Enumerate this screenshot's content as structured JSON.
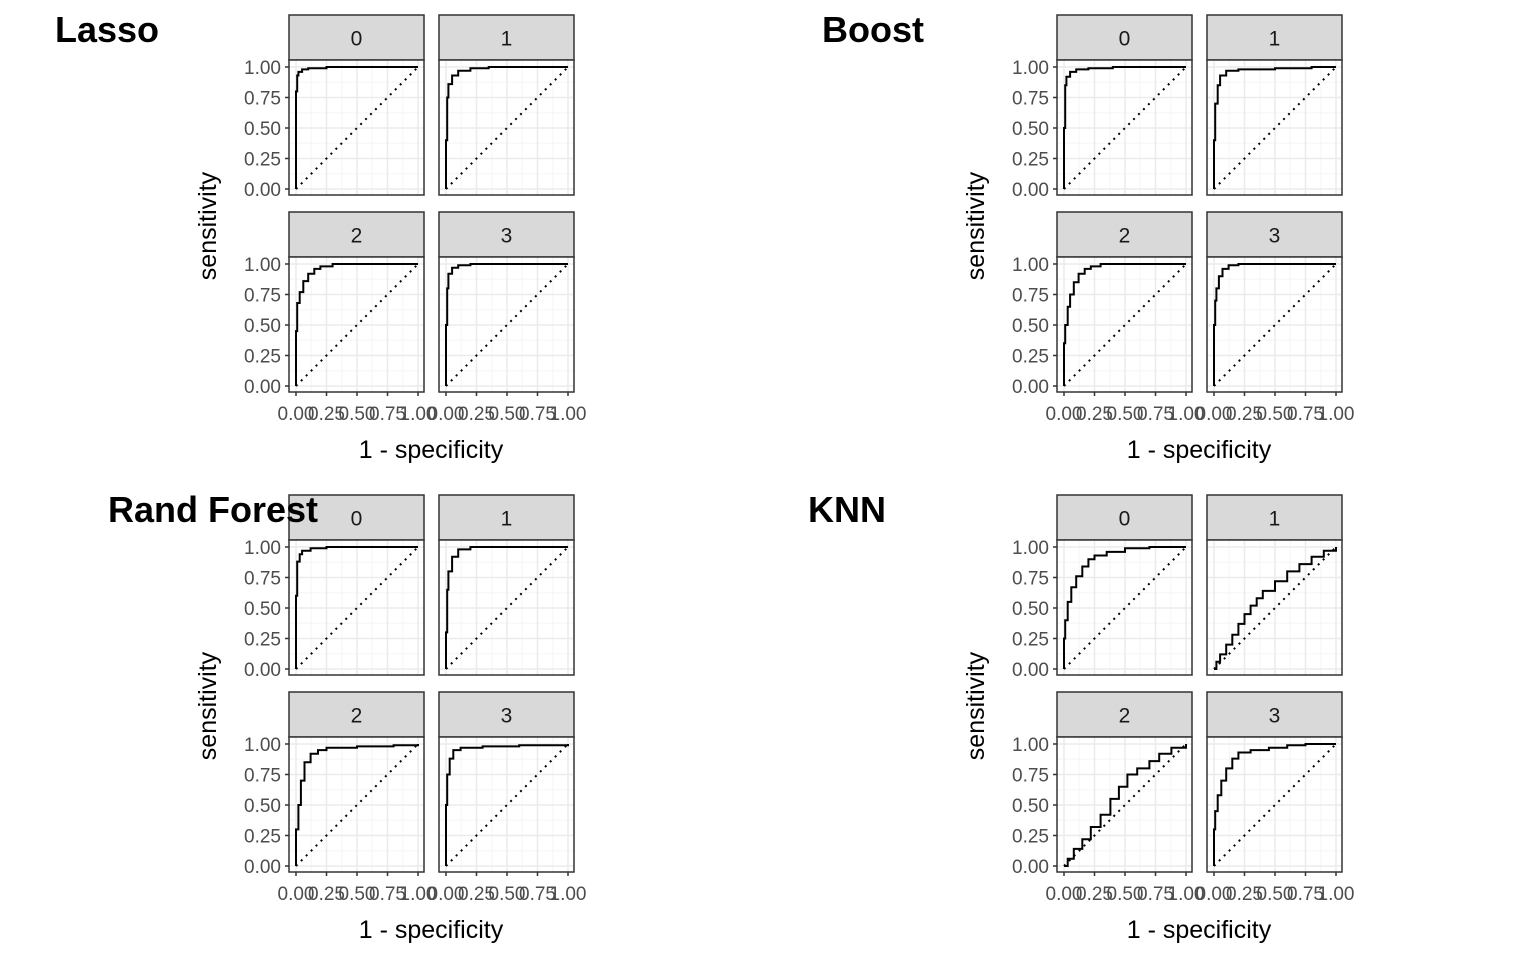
{
  "colors": {
    "strip_fill": "#d9d9d9",
    "border": "#333333",
    "grid_major": "#ebebeb",
    "grid_minor": "#f5f5f5",
    "tick_text": "#4d4d4d",
    "curve": "#000000"
  },
  "chart_data": [
    {
      "type": "line",
      "title": "Lasso",
      "xlabel": "1 - specificity",
      "ylabel": "sensitivity",
      "xlim": [
        0,
        1
      ],
      "ylim": [
        0,
        1
      ],
      "x_ticks": [
        "0.00",
        "0.25",
        "0.50",
        "0.75",
        "1.00"
      ],
      "y_ticks": [
        "0.00",
        "0.25",
        "0.50",
        "0.75",
        "1.00"
      ],
      "facets": [
        {
          "label": "0",
          "roc": [
            [
              0,
              0
            ],
            [
              0,
              0.5
            ],
            [
              0,
              0.8
            ],
            [
              0.01,
              0.93
            ],
            [
              0.02,
              0.96
            ],
            [
              0.05,
              0.98
            ],
            [
              0.1,
              0.99
            ],
            [
              0.25,
              1
            ],
            [
              1,
              1
            ]
          ]
        },
        {
          "label": "1",
          "roc": [
            [
              0,
              0
            ],
            [
              0,
              0.4
            ],
            [
              0.01,
              0.75
            ],
            [
              0.02,
              0.86
            ],
            [
              0.05,
              0.93
            ],
            [
              0.1,
              0.97
            ],
            [
              0.2,
              0.99
            ],
            [
              0.35,
              1
            ],
            [
              1,
              1
            ]
          ]
        },
        {
          "label": "2",
          "roc": [
            [
              0,
              0
            ],
            [
              0,
              0.45
            ],
            [
              0.01,
              0.68
            ],
            [
              0.03,
              0.77
            ],
            [
              0.06,
              0.86
            ],
            [
              0.1,
              0.92
            ],
            [
              0.15,
              0.96
            ],
            [
              0.2,
              0.98
            ],
            [
              0.3,
              1
            ],
            [
              1,
              1
            ]
          ]
        },
        {
          "label": "3",
          "roc": [
            [
              0,
              0
            ],
            [
              0,
              0.5
            ],
            [
              0.01,
              0.8
            ],
            [
              0.02,
              0.92
            ],
            [
              0.05,
              0.97
            ],
            [
              0.1,
              0.99
            ],
            [
              0.2,
              1
            ],
            [
              1,
              1
            ]
          ]
        }
      ]
    },
    {
      "type": "line",
      "title": "Boost",
      "xlabel": "1 - specificity",
      "ylabel": "sensitivity",
      "xlim": [
        0,
        1
      ],
      "ylim": [
        0,
        1
      ],
      "x_ticks": [
        "0.00",
        "0.25",
        "0.50",
        "0.75",
        "1.00"
      ],
      "y_ticks": [
        "0.00",
        "0.25",
        "0.50",
        "0.75",
        "1.00"
      ],
      "facets": [
        {
          "label": "0",
          "roc": [
            [
              0,
              0
            ],
            [
              0,
              0.5
            ],
            [
              0.01,
              0.85
            ],
            [
              0.02,
              0.92
            ],
            [
              0.05,
              0.96
            ],
            [
              0.1,
              0.98
            ],
            [
              0.2,
              0.99
            ],
            [
              0.4,
              1
            ],
            [
              1,
              1
            ]
          ]
        },
        {
          "label": "1",
          "roc": [
            [
              0,
              0
            ],
            [
              0,
              0.4
            ],
            [
              0.01,
              0.7
            ],
            [
              0.03,
              0.85
            ],
            [
              0.05,
              0.93
            ],
            [
              0.1,
              0.97
            ],
            [
              0.2,
              0.98
            ],
            [
              0.5,
              0.99
            ],
            [
              0.8,
              1
            ],
            [
              1,
              1
            ]
          ]
        },
        {
          "label": "2",
          "roc": [
            [
              0,
              0
            ],
            [
              0,
              0.35
            ],
            [
              0.01,
              0.5
            ],
            [
              0.03,
              0.65
            ],
            [
              0.05,
              0.75
            ],
            [
              0.08,
              0.85
            ],
            [
              0.12,
              0.92
            ],
            [
              0.17,
              0.96
            ],
            [
              0.22,
              0.98
            ],
            [
              0.3,
              1
            ],
            [
              1,
              1
            ]
          ]
        },
        {
          "label": "3",
          "roc": [
            [
              0,
              0
            ],
            [
              0,
              0.5
            ],
            [
              0.01,
              0.7
            ],
            [
              0.02,
              0.8
            ],
            [
              0.04,
              0.9
            ],
            [
              0.07,
              0.96
            ],
            [
              0.12,
              0.99
            ],
            [
              0.2,
              1
            ],
            [
              1,
              1
            ]
          ]
        }
      ]
    },
    {
      "type": "line",
      "title": "Rand Forest",
      "xlabel": "1 - specificity",
      "ylabel": "sensitivity",
      "xlim": [
        0,
        1
      ],
      "ylim": [
        0,
        1
      ],
      "x_ticks": [
        "0.00",
        "0.25",
        "0.50",
        "0.75",
        "1.00"
      ],
      "y_ticks": [
        "0.00",
        "0.25",
        "0.50",
        "0.75",
        "1.00"
      ],
      "facets": [
        {
          "label": "0",
          "roc": [
            [
              0,
              0
            ],
            [
              0,
              0.6
            ],
            [
              0.01,
              0.88
            ],
            [
              0.03,
              0.94
            ],
            [
              0.05,
              0.97
            ],
            [
              0.12,
              0.99
            ],
            [
              0.25,
              1
            ],
            [
              1,
              1
            ]
          ]
        },
        {
          "label": "1",
          "roc": [
            [
              0,
              0
            ],
            [
              0,
              0.3
            ],
            [
              0.01,
              0.65
            ],
            [
              0.02,
              0.8
            ],
            [
              0.05,
              0.92
            ],
            [
              0.1,
              0.98
            ],
            [
              0.2,
              1
            ],
            [
              1,
              1
            ]
          ]
        },
        {
          "label": "2",
          "roc": [
            [
              0,
              0
            ],
            [
              0,
              0.3
            ],
            [
              0.02,
              0.5
            ],
            [
              0.04,
              0.7
            ],
            [
              0.07,
              0.85
            ],
            [
              0.12,
              0.92
            ],
            [
              0.18,
              0.95
            ],
            [
              0.25,
              0.97
            ],
            [
              0.5,
              0.98
            ],
            [
              0.8,
              0.99
            ],
            [
              1,
              1
            ]
          ]
        },
        {
          "label": "3",
          "roc": [
            [
              0,
              0
            ],
            [
              0,
              0.5
            ],
            [
              0.01,
              0.75
            ],
            [
              0.03,
              0.88
            ],
            [
              0.06,
              0.95
            ],
            [
              0.12,
              0.97
            ],
            [
              0.3,
              0.98
            ],
            [
              0.6,
              0.99
            ],
            [
              1,
              1
            ]
          ]
        }
      ]
    },
    {
      "type": "line",
      "title": "KNN",
      "xlabel": "1 - specificity",
      "ylabel": "sensitivity",
      "xlim": [
        0,
        1
      ],
      "ylim": [
        0,
        1
      ],
      "x_ticks": [
        "0.00",
        "0.25",
        "0.50",
        "0.75",
        "1.00"
      ],
      "y_ticks": [
        "0.00",
        "0.25",
        "0.50",
        "0.75",
        "1.00"
      ],
      "facets": [
        {
          "label": "0",
          "roc": [
            [
              0,
              0
            ],
            [
              0,
              0.25
            ],
            [
              0.01,
              0.4
            ],
            [
              0.03,
              0.55
            ],
            [
              0.06,
              0.67
            ],
            [
              0.1,
              0.76
            ],
            [
              0.15,
              0.84
            ],
            [
              0.2,
              0.9
            ],
            [
              0.25,
              0.93
            ],
            [
              0.35,
              0.96
            ],
            [
              0.5,
              0.99
            ],
            [
              0.7,
              1
            ],
            [
              1,
              1
            ]
          ]
        },
        {
          "label": "1",
          "roc": [
            [
              0,
              0
            ],
            [
              0.02,
              0.06
            ],
            [
              0.05,
              0.12
            ],
            [
              0.1,
              0.2
            ],
            [
              0.15,
              0.28
            ],
            [
              0.2,
              0.37
            ],
            [
              0.25,
              0.45
            ],
            [
              0.3,
              0.52
            ],
            [
              0.35,
              0.58
            ],
            [
              0.4,
              0.64
            ],
            [
              0.5,
              0.72
            ],
            [
              0.6,
              0.8
            ],
            [
              0.7,
              0.86
            ],
            [
              0.8,
              0.92
            ],
            [
              0.9,
              0.97
            ],
            [
              1,
              1
            ]
          ]
        },
        {
          "label": "2",
          "roc": [
            [
              0,
              0
            ],
            [
              0.03,
              0.06
            ],
            [
              0.08,
              0.14
            ],
            [
              0.15,
              0.22
            ],
            [
              0.22,
              0.32
            ],
            [
              0.3,
              0.42
            ],
            [
              0.38,
              0.55
            ],
            [
              0.45,
              0.65
            ],
            [
              0.52,
              0.75
            ],
            [
              0.6,
              0.8
            ],
            [
              0.7,
              0.86
            ],
            [
              0.78,
              0.92
            ],
            [
              0.88,
              0.97
            ],
            [
              1,
              1
            ]
          ]
        },
        {
          "label": "3",
          "roc": [
            [
              0,
              0
            ],
            [
              0,
              0.3
            ],
            [
              0.01,
              0.45
            ],
            [
              0.03,
              0.58
            ],
            [
              0.06,
              0.7
            ],
            [
              0.1,
              0.8
            ],
            [
              0.15,
              0.88
            ],
            [
              0.2,
              0.93
            ],
            [
              0.3,
              0.95
            ],
            [
              0.45,
              0.97
            ],
            [
              0.6,
              0.99
            ],
            [
              0.75,
              1
            ],
            [
              1,
              1
            ]
          ]
        }
      ]
    }
  ]
}
